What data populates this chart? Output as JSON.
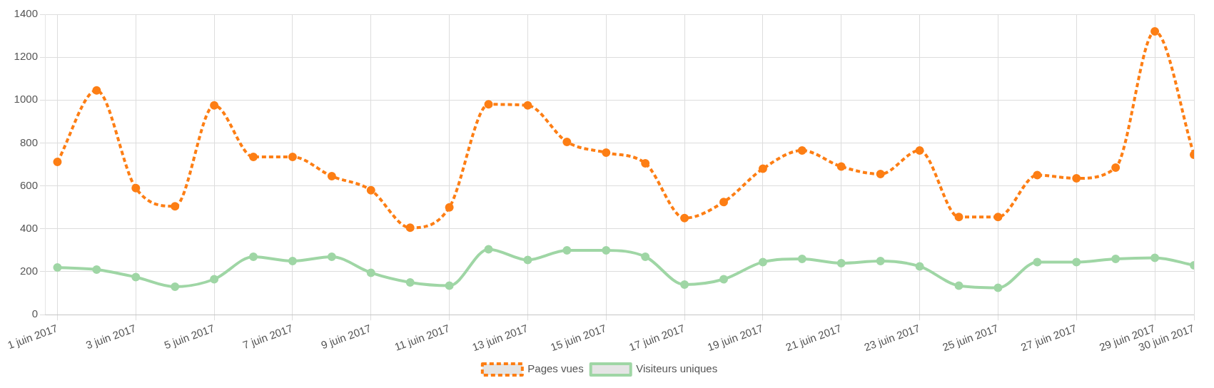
{
  "chart_data": {
    "type": "line",
    "x": [
      "2017-06-01",
      "2017-06-02",
      "2017-06-03",
      "2017-06-04",
      "2017-06-05",
      "2017-06-06",
      "2017-06-07",
      "2017-06-08",
      "2017-06-09",
      "2017-06-10",
      "2017-06-11",
      "2017-06-12",
      "2017-06-13",
      "2017-06-14",
      "2017-06-15",
      "2017-06-16",
      "2017-06-17",
      "2017-06-18",
      "2017-06-19",
      "2017-06-20",
      "2017-06-21",
      "2017-06-22",
      "2017-06-23",
      "2017-06-24",
      "2017-06-25",
      "2017-06-26",
      "2017-06-27",
      "2017-06-28",
      "2017-06-29",
      "2017-06-30"
    ],
    "series": [
      {
        "name": "Pages vues",
        "color": "#fd7e14",
        "line_style": "dashed",
        "values": [
          712,
          1045,
          590,
          505,
          975,
          735,
          735,
          645,
          580,
          405,
          500,
          980,
          975,
          805,
          755,
          705,
          450,
          525,
          680,
          765,
          690,
          655,
          765,
          455,
          455,
          650,
          635,
          685,
          1320,
          745
        ]
      },
      {
        "name": "Visiteurs uniques",
        "color": "#9fd6a5",
        "line_style": "solid",
        "values": [
          220,
          210,
          175,
          130,
          165,
          270,
          250,
          270,
          195,
          150,
          135,
          305,
          255,
          300,
          300,
          270,
          140,
          165,
          245,
          260,
          240,
          250,
          225,
          135,
          125,
          245,
          245,
          260,
          265,
          230
        ]
      }
    ],
    "xlim": [
      "2017-06-01",
      "2017-06-30"
    ],
    "xticks": [
      {
        "value": "2017-06-01",
        "label": "1 juin 2017"
      },
      {
        "value": "2017-06-03",
        "label": "3 juin 2017"
      },
      {
        "value": "2017-06-05",
        "label": "5 juin 2017"
      },
      {
        "value": "2017-06-07",
        "label": "7 juin 2017"
      },
      {
        "value": "2017-06-09",
        "label": "9 juin 2017"
      },
      {
        "value": "2017-06-11",
        "label": "11 juin 2017"
      },
      {
        "value": "2017-06-13",
        "label": "13 juin 2017"
      },
      {
        "value": "2017-06-15",
        "label": "15 juin 2017"
      },
      {
        "value": "2017-06-17",
        "label": "17 juin 2017"
      },
      {
        "value": "2017-06-19",
        "label": "19 juin 2017"
      },
      {
        "value": "2017-06-21",
        "label": "21 juin 2017"
      },
      {
        "value": "2017-06-23",
        "label": "23 juin 2017"
      },
      {
        "value": "2017-06-25",
        "label": "25 juin 2017"
      },
      {
        "value": "2017-06-27",
        "label": "27 juin 2017"
      },
      {
        "value": "2017-06-29",
        "label": "29 juin 2017"
      },
      {
        "value": "2017-06-30",
        "label": "30 juin 2017"
      }
    ],
    "ylim": [
      0,
      1400
    ],
    "yticks": [
      0,
      200,
      400,
      600,
      800,
      1000,
      1200,
      1400
    ],
    "grid": true,
    "legend": "bottom",
    "marker": "circle"
  }
}
